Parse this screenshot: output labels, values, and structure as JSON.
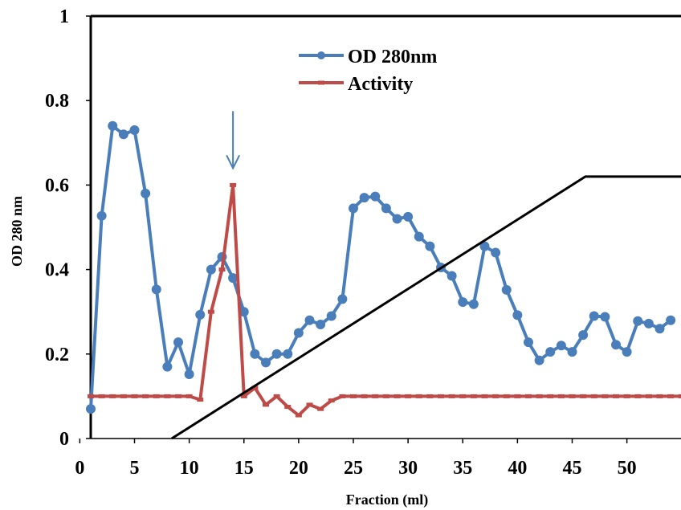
{
  "chart_data": {
    "type": "line",
    "title": "",
    "xlabel": "Fraction (ml)",
    "ylabel": "OD 280 nm",
    "xlim": [
      1,
      55.6
    ],
    "ylim": [
      0,
      1
    ],
    "x_ticks": [
      0,
      5,
      10,
      15,
      20,
      25,
      30,
      35,
      40,
      45,
      50
    ],
    "y_ticks": [
      0,
      0.2,
      0.4,
      0.6,
      0.8,
      1
    ],
    "y_tick_labels": [
      "0",
      "0.2",
      "0.4",
      "0.6",
      "0.8",
      "1"
    ],
    "grid": false,
    "legend_position": "top-center",
    "series": [
      {
        "name": "OD 280nm",
        "color": "#4a7ebb",
        "marker": "circle",
        "x": [
          1,
          2,
          3,
          4,
          5,
          6,
          7,
          8,
          9,
          10,
          11,
          12,
          13,
          14,
          15,
          16,
          17,
          18,
          19,
          20,
          21,
          22,
          23,
          24,
          25,
          26,
          27,
          28,
          29,
          30,
          31,
          32,
          33,
          34,
          35,
          36,
          37,
          38,
          39,
          40,
          41,
          42,
          43,
          44,
          45,
          46,
          47,
          48,
          49,
          50,
          51,
          52,
          53,
          54
        ],
        "y": [
          0.07,
          0.527,
          0.74,
          0.72,
          0.73,
          0.58,
          0.353,
          0.17,
          0.228,
          0.152,
          0.293,
          0.4,
          0.43,
          0.38,
          0.3,
          0.2,
          0.18,
          0.2,
          0.2,
          0.25,
          0.28,
          0.27,
          0.29,
          0.33,
          0.545,
          0.57,
          0.573,
          0.545,
          0.52,
          0.525,
          0.478,
          0.455,
          0.405,
          0.385,
          0.323,
          0.318,
          0.455,
          0.44,
          0.352,
          0.292,
          0.228,
          0.185,
          0.205,
          0.22,
          0.205,
          0.245,
          0.29,
          0.288,
          0.222,
          0.205,
          0.278,
          0.272,
          0.26,
          0.28
        ]
      },
      {
        "name": "Activity",
        "color": "#be4b48",
        "marker": "dash",
        "x": [
          1,
          2,
          3,
          4,
          5,
          6,
          7,
          8,
          9,
          10,
          11,
          12,
          13,
          14,
          15,
          16,
          17,
          18,
          19,
          20,
          21,
          22,
          23,
          24,
          25,
          26,
          27,
          28,
          29,
          30,
          31,
          32,
          33,
          34,
          35,
          36,
          37,
          38,
          39,
          40,
          41,
          42,
          43,
          44,
          45,
          46,
          47,
          48,
          49,
          50,
          51,
          52,
          53,
          54,
          55
        ],
        "y": [
          0.1,
          0.1,
          0.1,
          0.1,
          0.1,
          0.1,
          0.1,
          0.1,
          0.1,
          0.1,
          0.092,
          0.3,
          0.4,
          0.6,
          0.1,
          0.12,
          0.08,
          0.1,
          0.075,
          0.055,
          0.08,
          0.07,
          0.09,
          0.1,
          0.1,
          0.1,
          0.1,
          0.1,
          0.1,
          0.1,
          0.1,
          0.1,
          0.1,
          0.1,
          0.1,
          0.1,
          0.1,
          0.1,
          0.1,
          0.1,
          0.1,
          0.1,
          0.1,
          0.1,
          0.1,
          0.1,
          0.1,
          0.1,
          0.1,
          0.1,
          0.1,
          0.1,
          0.1,
          0.1,
          0.1
        ]
      },
      {
        "color": "#000000",
        "marker": "none",
        "x": [
          8.4,
          46.2,
          55.6
        ],
        "y": [
          0.0,
          0.62,
          0.62
        ]
      }
    ],
    "annotations": [
      {
        "type": "arrow-down",
        "x": 14,
        "y_top": 0.775,
        "y_bottom": 0.64,
        "color": "#4a7ebb"
      }
    ]
  }
}
